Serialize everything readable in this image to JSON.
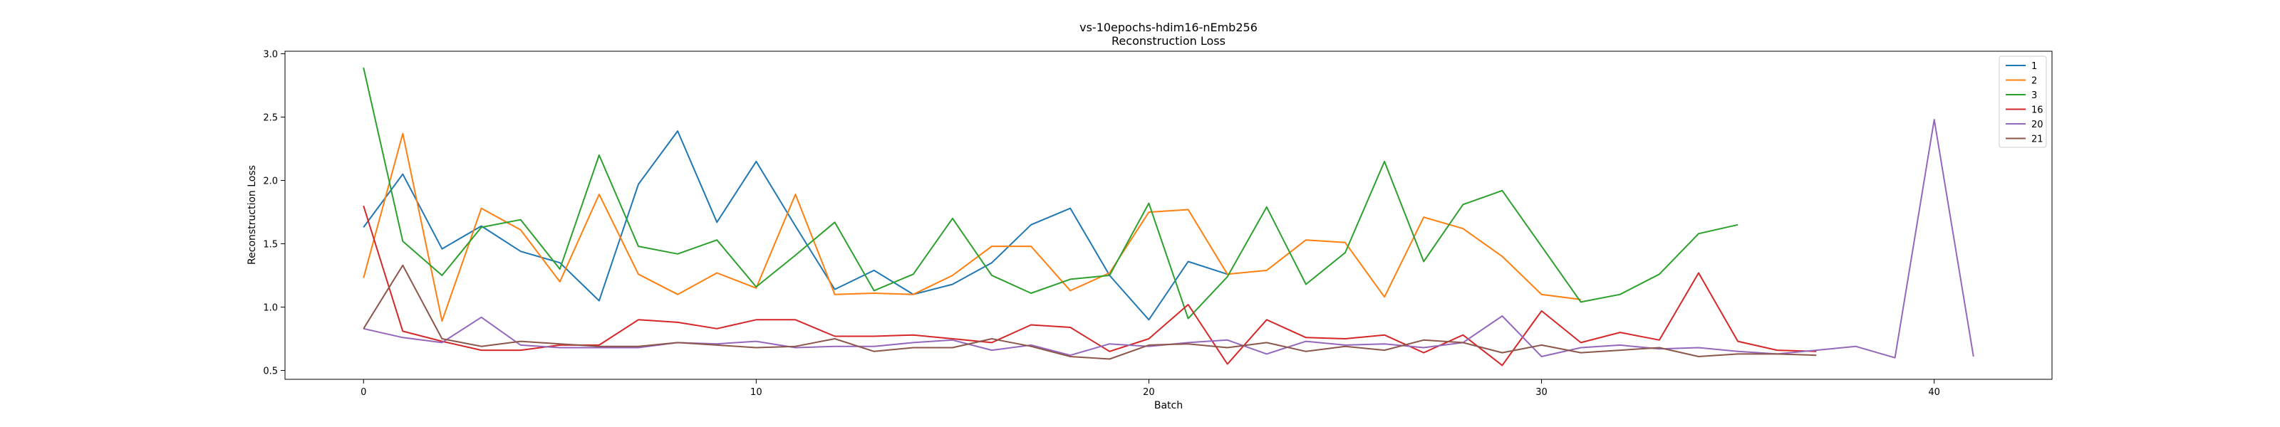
{
  "chart_data": {
    "type": "line",
    "title": "vs-10epochs-hdim16-nEmb256",
    "subtitle": "Reconstruction Loss",
    "xlabel": "Batch",
    "ylabel": "Reconstruction Loss",
    "xlim": [
      -2,
      43
    ],
    "ylim": [
      0.43,
      3.02
    ],
    "xticks": [
      0,
      10,
      20,
      30,
      40
    ],
    "yticks": [
      0.5,
      1.0,
      1.5,
      2.0,
      2.5,
      3.0
    ],
    "ytick_labels": [
      "0.5",
      "1.0",
      "1.5",
      "2.0",
      "2.5",
      "3.0"
    ],
    "grid": false,
    "legend_position": "top-right",
    "series": [
      {
        "name": "1",
        "color": "#1f77b4",
        "x": [
          0,
          1,
          2,
          3,
          4,
          5,
          6,
          7,
          8,
          9,
          10,
          11,
          12,
          13,
          14,
          15,
          16,
          17,
          18,
          19,
          20,
          21,
          22
        ],
        "values": [
          1.63,
          2.05,
          1.46,
          1.64,
          1.44,
          1.35,
          1.05,
          1.97,
          2.39,
          1.67,
          2.15,
          1.64,
          1.14,
          1.29,
          1.1,
          1.18,
          1.35,
          1.65,
          1.78,
          1.25,
          0.9,
          1.36,
          1.26
        ]
      },
      {
        "name": "2",
        "color": "#ff7f0e",
        "x": [
          0,
          1,
          2,
          3,
          4,
          5,
          6,
          7,
          8,
          9,
          10,
          11,
          12,
          13,
          14,
          15,
          16,
          17,
          18,
          19,
          20,
          21,
          22,
          23,
          24,
          25,
          26,
          27,
          28,
          29,
          30,
          31
        ],
        "values": [
          1.23,
          2.37,
          0.89,
          1.78,
          1.61,
          1.2,
          1.89,
          1.26,
          1.1,
          1.27,
          1.15,
          1.89,
          1.1,
          1.11,
          1.1,
          1.25,
          1.48,
          1.48,
          1.13,
          1.27,
          1.75,
          1.77,
          1.26,
          1.29,
          1.53,
          1.51,
          1.08,
          1.71,
          1.62,
          1.4,
          1.1,
          1.06
        ]
      },
      {
        "name": "3",
        "color": "#2ca02c",
        "x": [
          0,
          1,
          2,
          3,
          4,
          5,
          6,
          7,
          8,
          9,
          10,
          11,
          12,
          13,
          14,
          15,
          16,
          17,
          18,
          19,
          20,
          21,
          22,
          23,
          24,
          25,
          26,
          27,
          28,
          29,
          30,
          31,
          32,
          33,
          34,
          35
        ],
        "values": [
          2.89,
          1.52,
          1.25,
          1.63,
          1.69,
          1.3,
          2.2,
          1.48,
          1.42,
          1.53,
          1.16,
          1.41,
          1.67,
          1.13,
          1.26,
          1.7,
          1.25,
          1.11,
          1.22,
          1.25,
          1.82,
          0.91,
          1.24,
          1.79,
          1.18,
          1.43,
          2.15,
          1.36,
          1.81,
          1.92,
          1.48,
          1.04,
          1.1,
          1.26,
          1.58,
          1.65
        ]
      },
      {
        "name": "16",
        "color": "#d62728",
        "x": [
          0,
          1,
          2,
          3,
          4,
          5,
          6,
          7,
          8,
          9,
          10,
          11,
          12,
          13,
          14,
          15,
          16,
          17,
          18,
          19,
          20,
          21,
          22,
          23,
          24,
          25,
          26,
          27,
          28,
          29,
          30,
          31,
          32,
          33,
          34,
          35,
          36,
          37
        ],
        "values": [
          1.8,
          0.81,
          0.73,
          0.66,
          0.66,
          0.7,
          0.7,
          0.9,
          0.88,
          0.83,
          0.9,
          0.9,
          0.77,
          0.77,
          0.78,
          0.75,
          0.72,
          0.86,
          0.84,
          0.65,
          0.75,
          1.02,
          0.55,
          0.9,
          0.76,
          0.75,
          0.78,
          0.64,
          0.78,
          0.54,
          0.97,
          0.72,
          0.8,
          0.74,
          1.27,
          0.73,
          0.66,
          0.65
        ]
      },
      {
        "name": "20",
        "color": "#9467bd",
        "x": [
          0,
          1,
          2,
          3,
          4,
          5,
          6,
          7,
          8,
          9,
          10,
          11,
          12,
          13,
          14,
          15,
          16,
          17,
          18,
          19,
          20,
          21,
          22,
          23,
          24,
          25,
          26,
          27,
          28,
          29,
          30,
          31,
          32,
          33,
          34,
          35,
          36,
          37,
          38,
          39,
          40,
          41
        ],
        "values": [
          0.83,
          0.76,
          0.72,
          0.92,
          0.7,
          0.68,
          0.68,
          0.68,
          0.72,
          0.71,
          0.73,
          0.68,
          0.69,
          0.69,
          0.72,
          0.74,
          0.66,
          0.7,
          0.62,
          0.71,
          0.69,
          0.72,
          0.74,
          0.63,
          0.73,
          0.7,
          0.71,
          0.68,
          0.72,
          0.93,
          0.61,
          0.68,
          0.7,
          0.67,
          0.68,
          0.65,
          0.63,
          0.66,
          0.69,
          0.6,
          2.48,
          0.61
        ]
      },
      {
        "name": "21",
        "color": "#8c564b",
        "x": [
          0,
          1,
          2,
          3,
          4,
          5,
          6,
          7,
          8,
          9,
          10,
          11,
          12,
          13,
          14,
          15,
          16,
          17,
          18,
          19,
          20,
          21,
          22,
          23,
          24,
          25,
          26,
          27,
          28,
          29,
          30,
          31,
          32,
          33,
          34,
          35,
          36,
          37
        ],
        "values": [
          0.83,
          1.33,
          0.75,
          0.69,
          0.73,
          0.71,
          0.69,
          0.69,
          0.72,
          0.7,
          0.68,
          0.69,
          0.75,
          0.65,
          0.68,
          0.68,
          0.75,
          0.69,
          0.61,
          0.59,
          0.7,
          0.71,
          0.68,
          0.72,
          0.65,
          0.69,
          0.66,
          0.74,
          0.72,
          0.64,
          0.7,
          0.64,
          0.66,
          0.68,
          0.61,
          0.63,
          0.63,
          0.62
        ]
      }
    ]
  }
}
